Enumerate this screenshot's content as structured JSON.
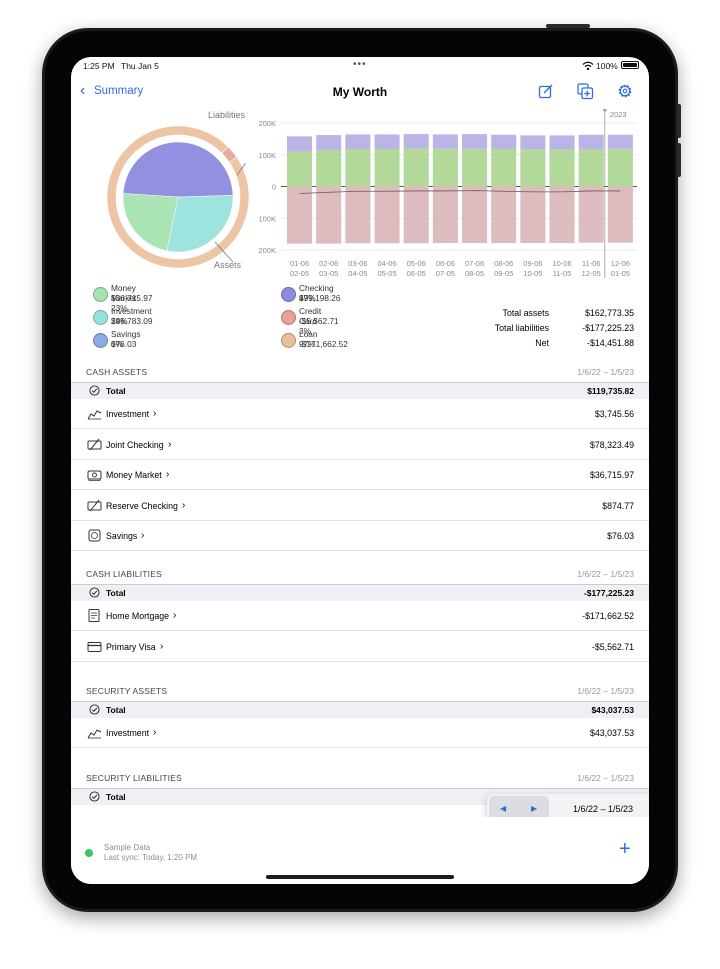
{
  "status": {
    "time": "1:25 PM",
    "date": "Thu Jan 5",
    "battery": "100%"
  },
  "nav": {
    "back_label": "Summary",
    "title": "My Worth"
  },
  "chart_data": [
    {
      "type": "pie",
      "labels": [
        "Liabilities",
        "Assets"
      ],
      "inner_slices": [
        {
          "name": "Checking",
          "percent": 49,
          "color": "#8f8be0"
        },
        {
          "name": "Investment",
          "percent": 29,
          "color": "#97e3dc"
        },
        {
          "name": "Money Market",
          "percent": 23,
          "color": "#a6e3b1"
        },
        {
          "name": "Savings",
          "percent": 0,
          "color": "#8fa9e2"
        }
      ],
      "outer_slices": [
        {
          "name": "Loan",
          "percent": 97,
          "color": "#edc5a5"
        },
        {
          "name": "Credit Card",
          "percent": 3,
          "color": "#e8aaa4"
        }
      ]
    },
    {
      "type": "bar",
      "year_marker": "2023",
      "ytick_labels": [
        "200K",
        "100K",
        "0",
        "100K",
        "200K"
      ],
      "ylim": [
        -200000,
        200000
      ],
      "categories": [
        [
          "01-06",
          "02-05"
        ],
        [
          "02-06",
          "03-05"
        ],
        [
          "03-06",
          "04-05"
        ],
        [
          "04-06",
          "05-05"
        ],
        [
          "05-06",
          "06-05"
        ],
        [
          "06-06",
          "07-05"
        ],
        [
          "07-06",
          "08-05"
        ],
        [
          "08-06",
          "09-05"
        ],
        [
          "09-06",
          "10-05"
        ],
        [
          "10-06",
          "11-05"
        ],
        [
          "11-06",
          "12-05"
        ],
        [
          "12-06",
          "01-05"
        ]
      ],
      "series": [
        {
          "color": "#b3d99a",
          "values": [
            110000,
            115000,
            118000,
            118000,
            120000,
            119000,
            119000,
            118000,
            117000,
            117000,
            118000,
            119000
          ]
        },
        {
          "color": "#b9b5e6",
          "values": [
            48000,
            47000,
            46000,
            46000,
            45000,
            45000,
            46000,
            45000,
            44000,
            44000,
            45000,
            44000
          ]
        },
        {
          "color": "#dcbcbf",
          "values": [
            -180000,
            -180000,
            -179000,
            -179000,
            -179000,
            -178000,
            -178000,
            -178000,
            -178000,
            -178000,
            -177000,
            -177000
          ]
        }
      ]
    }
  ],
  "legend": [
    {
      "label": "Money Market 23%",
      "value": "$36,715.97",
      "color": "#a6e3b1"
    },
    {
      "label": "Investment 29%",
      "value": "$46,783.09",
      "color": "#97e3dc"
    },
    {
      "label": "Savings 0%",
      "value": "$76.03",
      "color": "#8fa9e2"
    },
    {
      "label": "Checking 49%",
      "value": "$79,198.26",
      "color": "#8f8be0"
    },
    {
      "label": "Credit Card 3%",
      "value": "-$5,562.71",
      "color": "#e8a296"
    },
    {
      "label": "Loan 97%",
      "value": "-$171,662.52",
      "color": "#eabf98"
    }
  ],
  "summary": [
    {
      "label": "Total assets",
      "value": "$162,773.35"
    },
    {
      "label": "Total liabilities",
      "value": "-$177,225.23"
    },
    {
      "label": "Net",
      "value": "-$14,451.88"
    }
  ],
  "sections": {
    "cash_assets": {
      "title": "CASH ASSETS",
      "range": "1/6/22 – 1/5/23",
      "total_label": "Total",
      "total": "$119,735.82",
      "rows": [
        {
          "icon": "chart-icon",
          "label": "Investment",
          "value": "$3,745.56"
        },
        {
          "icon": "check-icon",
          "label": "Joint Checking",
          "value": "$78,323.49"
        },
        {
          "icon": "money-icon",
          "label": "Money Market",
          "value": "$36,715.97"
        },
        {
          "icon": "check-icon",
          "label": "Reserve Checking",
          "value": "$874.77"
        },
        {
          "icon": "piggy-bank-icon",
          "label": "Savings",
          "value": "$76.03"
        }
      ]
    },
    "cash_liabilities": {
      "title": "CASH LIABILITIES",
      "range": "1/6/22 – 1/5/23",
      "total_label": "Total",
      "total": "-$177,225.23",
      "rows": [
        {
          "icon": "document-icon",
          "label": "Home Mortgage",
          "value": "-$171,662.52"
        },
        {
          "icon": "credit-card-icon",
          "label": "Primary Visa",
          "value": "-$5,562.71"
        }
      ]
    },
    "security_assets": {
      "title": "SECURITY ASSETS",
      "range": "1/6/22 – 1/5/23",
      "total_label": "Total",
      "total": "$43,037.53",
      "rows": [
        {
          "icon": "chart-icon",
          "label": "Investment",
          "value": "$43,037.53"
        }
      ]
    },
    "security_liabilities": {
      "title": "SECURITY LIABILITIES",
      "range": "1/6/22 – 1/5/23",
      "total_label": "Total"
    }
  },
  "period_picker": {
    "prev": "◀",
    "next": "▶",
    "range": "1/6/22 – 1/5/23"
  },
  "footer": {
    "sync_title": "Sample Data",
    "sync_status": "Last sync: Today, 1:20 PM",
    "add": "+",
    "status_color": "#34c759"
  }
}
